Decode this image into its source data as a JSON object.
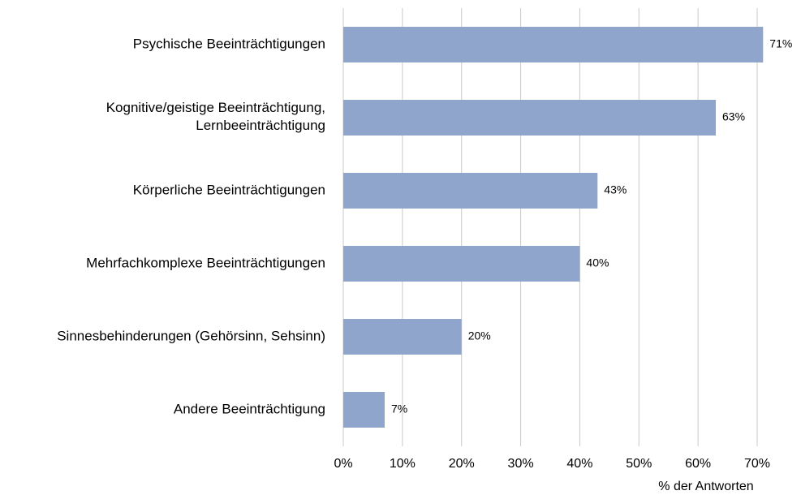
{
  "chart_data": {
    "type": "barh",
    "categories": [
      "Psychische Beeinträchtigungen",
      "Kognitive/geistige Beeinträchtigung,\nLernbeeinträchtigung",
      "Körperliche Beeinträchtigungen",
      "Mehrfachkomplexe Beeinträchtigungen",
      "Sinnesbehinderungen (Gehörsinn, Sehsinn)",
      "Andere Beeinträchtigung"
    ],
    "values": [
      71,
      63,
      43,
      40,
      20,
      7
    ],
    "value_labels": [
      "71%",
      "63%",
      "43%",
      "40%",
      "20%",
      "7%"
    ],
    "color": "#8fa5cc",
    "xlabel": "% der Antworten",
    "xlim": [
      0,
      70
    ],
    "xticks": [
      {
        "value": 0,
        "label": "0%"
      },
      {
        "value": 10,
        "label": "10%"
      },
      {
        "value": 20,
        "label": "20%"
      },
      {
        "value": 30,
        "label": "30%"
      },
      {
        "value": 40,
        "label": "40%"
      },
      {
        "value": 50,
        "label": "50%"
      },
      {
        "value": 60,
        "label": "60%"
      },
      {
        "value": 70,
        "label": "70%"
      }
    ],
    "grid": true
  }
}
